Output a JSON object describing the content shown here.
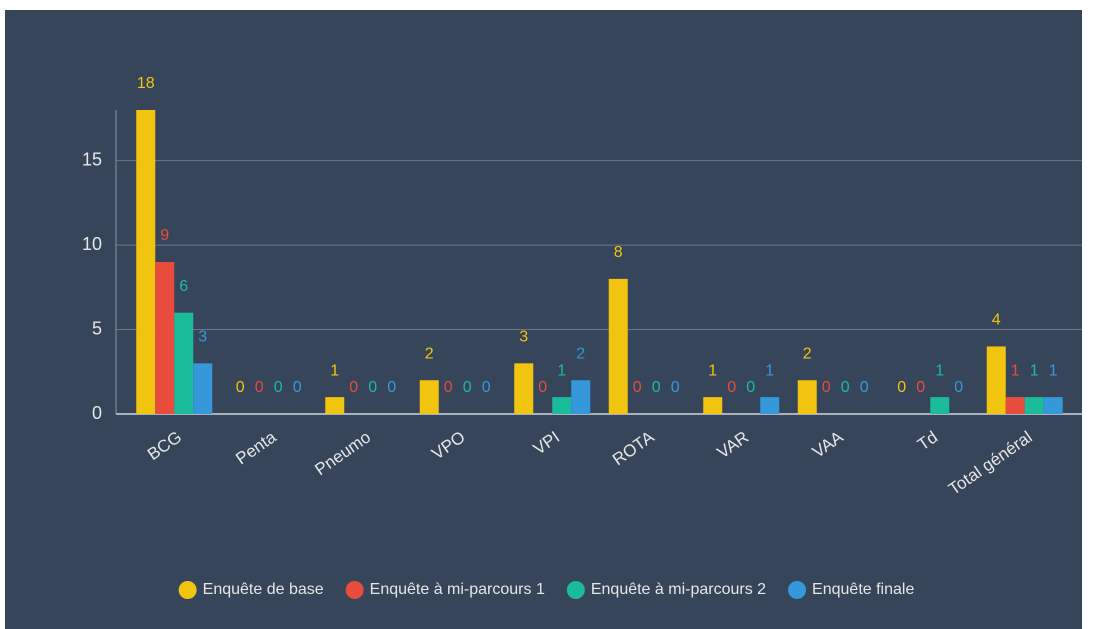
{
  "chart_data": {
    "type": "bar",
    "categories": [
      "BCG",
      "Penta",
      "Pneumo",
      "VPO",
      "VPI",
      "ROTA",
      "VAR",
      "VAA",
      "Td",
      "Total général"
    ],
    "series": [
      {
        "name": "Enquête de base",
        "color": "#f1c40f",
        "values": [
          18,
          0,
          1,
          2,
          3,
          8,
          1,
          2,
          0,
          4
        ]
      },
      {
        "name": "Enquête à mi-parcours 1",
        "color": "#e74c3c",
        "values": [
          9,
          0,
          0,
          0,
          0,
          0,
          0,
          0,
          0,
          1
        ]
      },
      {
        "name": "Enquête à mi-parcours 2",
        "color": "#1abc9c",
        "values": [
          6,
          0,
          0,
          0,
          1,
          0,
          0,
          0,
          1,
          1
        ]
      },
      {
        "name": "Enquête finale",
        "color": "#3498db",
        "values": [
          3,
          0,
          0,
          0,
          2,
          0,
          1,
          0,
          0,
          1
        ]
      }
    ],
    "ylim": [
      0,
      18
    ],
    "yticks": [
      0,
      5,
      10,
      15
    ],
    "grid": true,
    "legend": "bottom"
  }
}
